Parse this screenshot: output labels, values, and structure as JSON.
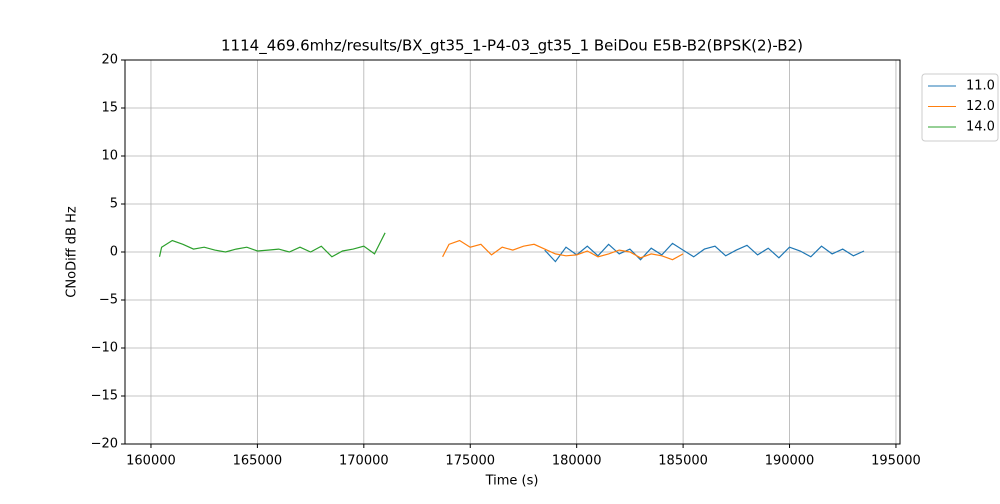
{
  "chart_data": {
    "type": "line",
    "title": "1114_469.6mhz/results/BX_gt35_1-P4-03_gt35_1 BeiDou E5B-B2(BPSK(2)-B2)",
    "x_label": "Time (s)",
    "y_label": "CNoDiff dB Hz",
    "xlim": [
      158780,
      195190
    ],
    "ylim": [
      -20,
      20
    ],
    "xticks": [
      160000,
      165000,
      170000,
      175000,
      180000,
      185000,
      190000,
      195000
    ],
    "yticks": [
      {
        "value": -20,
        "label": "−20"
      },
      {
        "value": -15,
        "label": "−15"
      },
      {
        "value": -10,
        "label": "−10"
      },
      {
        "value": -5,
        "label": "−5"
      },
      0,
      5,
      10,
      15,
      20
    ],
    "grid": true,
    "legend": "outside upper right",
    "series": [
      {
        "name": "11.0",
        "color": "#1f77b4",
        "x": [
          178500,
          179000,
          179500,
          180000,
          180500,
          181000,
          181500,
          182000,
          182500,
          183000,
          183500,
          184000,
          184500,
          185000,
          185500,
          186000,
          186500,
          187000,
          187500,
          188000,
          188500,
          189000,
          189500,
          190000,
          190500,
          191000,
          191500,
          192000,
          192500,
          193000,
          193500
        ],
        "values": [
          0.2,
          -1.0,
          0.5,
          -0.3,
          0.6,
          -0.4,
          0.8,
          -0.2,
          0.3,
          -0.8,
          0.4,
          -0.3,
          0.9,
          0.2,
          -0.5,
          0.3,
          0.6,
          -0.4,
          0.2,
          0.7,
          -0.3,
          0.4,
          -0.6,
          0.5,
          0.1,
          -0.5,
          0.6,
          -0.2,
          0.3,
          -0.4,
          0.1
        ]
      },
      {
        "name": "12.0",
        "color": "#ff7f0e",
        "x": [
          173700,
          174000,
          174500,
          175000,
          175500,
          176000,
          176500,
          177000,
          177500,
          178000,
          178500,
          179000,
          179500,
          180000,
          180500,
          181000,
          181500,
          182000,
          182500,
          183000,
          183500,
          184000,
          184500,
          185000
        ],
        "values": [
          -0.5,
          0.8,
          1.2,
          0.5,
          0.8,
          -0.3,
          0.5,
          0.2,
          0.6,
          0.8,
          0.3,
          -0.2,
          -0.4,
          -0.3,
          0.1,
          -0.5,
          -0.2,
          0.2,
          0,
          -0.6,
          -0.2,
          -0.4,
          -0.8,
          -0.2
        ]
      },
      {
        "name": "14.0",
        "color": "#2ca02c",
        "x": [
          160400,
          160500,
          161000,
          161500,
          162000,
          162500,
          163000,
          163500,
          164000,
          164500,
          165000,
          165500,
          166000,
          166500,
          167000,
          167500,
          168000,
          168500,
          169000,
          169500,
          170000,
          170500,
          171000
        ],
        "values": [
          -0.5,
          0.5,
          1.2,
          0.8,
          0.3,
          0.5,
          0.2,
          0,
          0.3,
          0.5,
          0.1,
          0.2,
          0.3,
          0,
          0.5,
          0,
          0.6,
          -0.5,
          0.1,
          0.3,
          0.6,
          -0.2,
          2.0
        ]
      }
    ]
  }
}
